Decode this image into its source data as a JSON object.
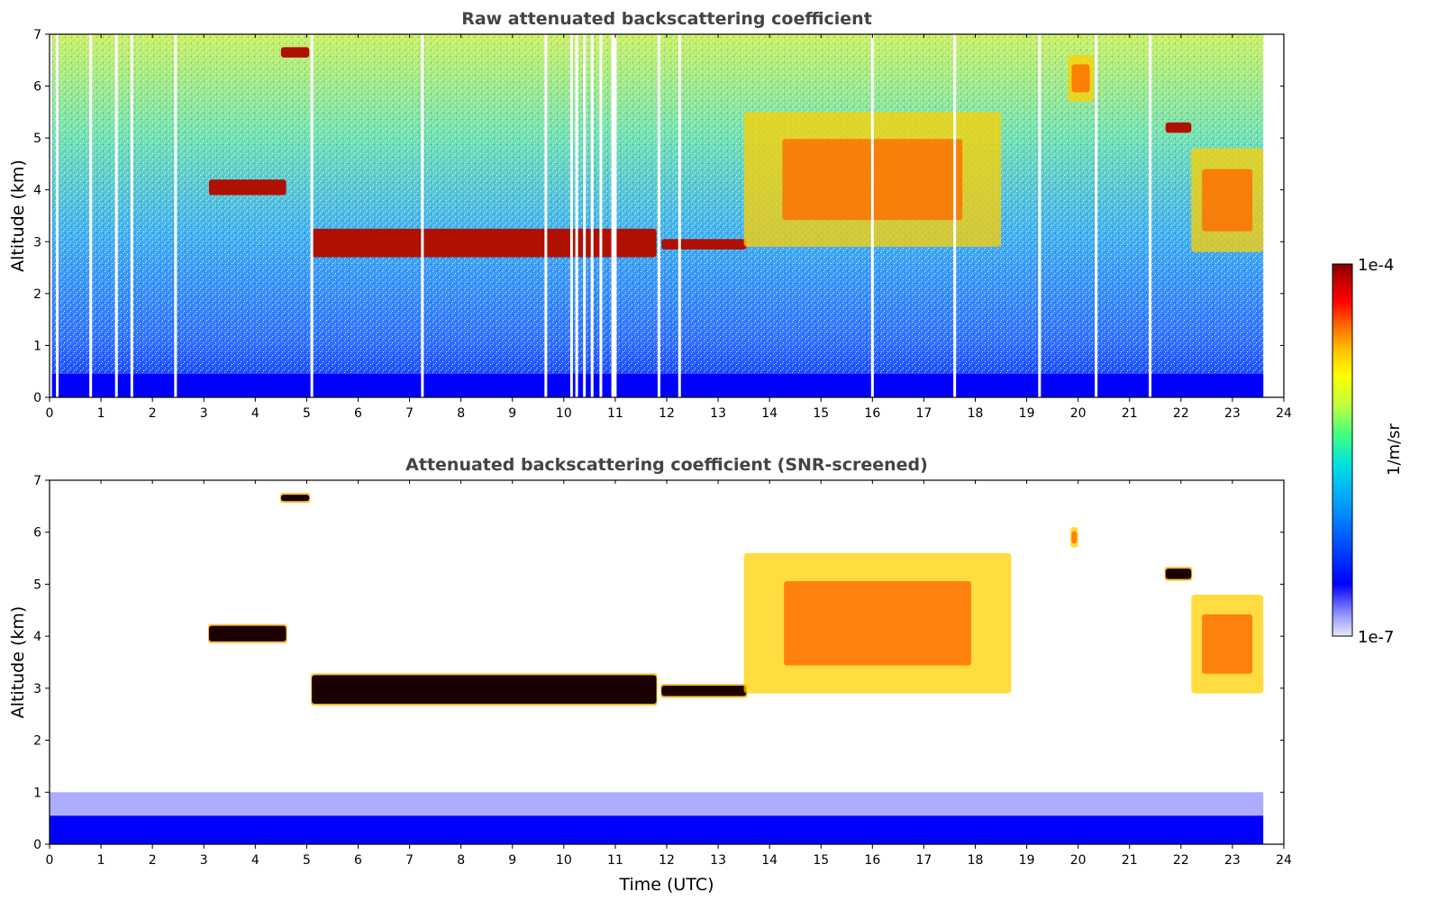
{
  "chart_data": [
    {
      "type": "heatmap",
      "title": "Raw attenuated backscattering coefficient",
      "xlabel": "",
      "ylabel": "Altitude (km)",
      "xlim": [
        0,
        24
      ],
      "ylim": [
        0,
        7
      ],
      "x_ticks": [
        "0",
        "1",
        "2",
        "3",
        "4",
        "5",
        "6",
        "7",
        "8",
        "9",
        "10",
        "11",
        "12",
        "13",
        "14",
        "15",
        "16",
        "17",
        "18",
        "19",
        "20",
        "21",
        "22",
        "23",
        "24"
      ],
      "y_ticks": [
        "0",
        "1",
        "2",
        "3",
        "4",
        "5",
        "6",
        "7"
      ],
      "data_end_time": 23.6,
      "gap_times": [
        0.02,
        0.15,
        0.8,
        1.3,
        1.6,
        2.45,
        5.1,
        7.25,
        9.65,
        10.15,
        10.25,
        10.4,
        10.55,
        10.72,
        10.95,
        11.0,
        11.85,
        12.25,
        16.0,
        17.6,
        19.25,
        20.35,
        21.4
      ],
      "features": [
        {
          "label": "cloud",
          "x": [
            3.1,
            4.6
          ],
          "y": [
            3.9,
            4.2
          ],
          "intensity": "high"
        },
        {
          "label": "cloud",
          "x": [
            4.5,
            5.05
          ],
          "y": [
            6.55,
            6.75
          ],
          "intensity": "high"
        },
        {
          "label": "cloud",
          "x": [
            5.1,
            11.8
          ],
          "y": [
            2.7,
            3.25
          ],
          "intensity": "high"
        },
        {
          "label": "cloud",
          "x": [
            11.9,
            13.55
          ],
          "y": [
            2.85,
            3.05
          ],
          "intensity": "high"
        },
        {
          "label": "cloud",
          "x": [
            13.5,
            18.5
          ],
          "y": [
            2.9,
            5.5
          ],
          "intensity": "medium"
        },
        {
          "label": "cloud",
          "x": [
            19.8,
            20.3
          ],
          "y": [
            5.7,
            6.6
          ],
          "intensity": "medium"
        },
        {
          "label": "cloud",
          "x": [
            21.7,
            22.2
          ],
          "y": [
            5.1,
            5.3
          ],
          "intensity": "high"
        },
        {
          "label": "cloud",
          "x": [
            22.2,
            23.6
          ],
          "y": [
            2.8,
            4.8
          ],
          "intensity": "medium"
        },
        {
          "label": "boundary-layer",
          "x": [
            0,
            23.6
          ],
          "y": [
            0,
            0.45
          ],
          "intensity": "low"
        }
      ]
    },
    {
      "type": "heatmap",
      "title": "Attenuated backscattering coefficient (SNR-screened)",
      "xlabel": "Time (UTC)",
      "ylabel": "Altitude (km)",
      "xlim": [
        0,
        24
      ],
      "ylim": [
        0,
        7
      ],
      "x_ticks": [
        "0",
        "1",
        "2",
        "3",
        "4",
        "5",
        "6",
        "7",
        "8",
        "9",
        "10",
        "11",
        "12",
        "13",
        "14",
        "15",
        "16",
        "17",
        "18",
        "19",
        "20",
        "21",
        "22",
        "23",
        "24"
      ],
      "y_ticks": [
        "0",
        "1",
        "2",
        "3",
        "4",
        "5",
        "6",
        "7"
      ],
      "data_end_time": 23.6,
      "features": [
        {
          "label": "cloud",
          "x": [
            3.1,
            4.6
          ],
          "y": [
            3.9,
            4.2
          ],
          "intensity": "saturated"
        },
        {
          "label": "cloud",
          "x": [
            4.5,
            5.05
          ],
          "y": [
            6.6,
            6.72
          ],
          "intensity": "saturated"
        },
        {
          "label": "cloud",
          "x": [
            5.1,
            11.8
          ],
          "y": [
            2.7,
            3.25
          ],
          "intensity": "saturated"
        },
        {
          "label": "cloud",
          "x": [
            11.9,
            13.55
          ],
          "y": [
            2.85,
            3.05
          ],
          "intensity": "saturated"
        },
        {
          "label": "cloud",
          "x": [
            13.5,
            18.7
          ],
          "y": [
            2.9,
            5.6
          ],
          "intensity": "medium"
        },
        {
          "label": "cloud",
          "x": [
            19.85,
            20.0
          ],
          "y": [
            5.7,
            6.1
          ],
          "intensity": "medium"
        },
        {
          "label": "cloud",
          "x": [
            21.7,
            22.2
          ],
          "y": [
            5.1,
            5.3
          ],
          "intensity": "saturated"
        },
        {
          "label": "cloud",
          "x": [
            22.2,
            23.6
          ],
          "y": [
            2.9,
            4.8
          ],
          "intensity": "medium"
        },
        {
          "label": "boundary-layer",
          "x": [
            0,
            23.6
          ],
          "y": [
            0,
            1.0
          ],
          "intensity": "low"
        }
      ]
    }
  ],
  "colorbar": {
    "max_label": "1e-4",
    "min_label": "1e-7",
    "unit_label": "1/m/sr",
    "scale": "log",
    "range": [
      1e-07,
      0.0001
    ],
    "colormap": [
      "#e8e8f8",
      "#a0a0ff",
      "#0000ff",
      "#0050ff",
      "#00a0ff",
      "#00e0e0",
      "#40ff80",
      "#c0ff40",
      "#ffff00",
      "#ffc000",
      "#ff6000",
      "#ff0000",
      "#c00000",
      "#800000"
    ]
  },
  "colors": {
    "title": "#444444",
    "saturated": "#1a0000",
    "boundary_layer": "#0000ff"
  }
}
